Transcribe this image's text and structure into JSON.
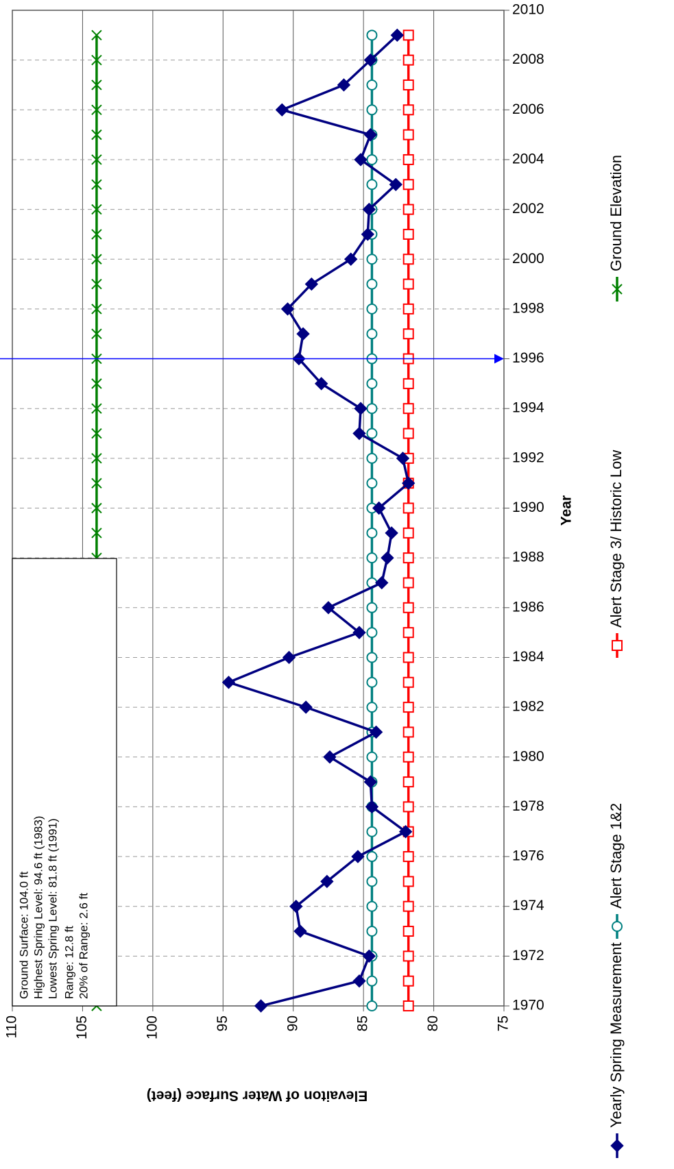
{
  "chart_data": {
    "type": "line",
    "x_label": "Year",
    "y_label": "Elevaiton of Water Surface (feet)",
    "x": [
      1970,
      1971,
      1972,
      1973,
      1974,
      1975,
      1976,
      1977,
      1978,
      1979,
      1980,
      1981,
      1982,
      1983,
      1984,
      1985,
      1986,
      1987,
      1988,
      1989,
      1990,
      1991,
      1992,
      1993,
      1994,
      1995,
      1996,
      1997,
      1998,
      1999,
      2000,
      2001,
      2002,
      2003,
      2004,
      2005,
      2006,
      2007,
      2008,
      2009
    ],
    "series": [
      {
        "name": "Yearly Spring Measurement",
        "color": "#000080",
        "marker": "diamond",
        "values": [
          92.3,
          85.3,
          84.6,
          89.5,
          89.8,
          87.6,
          85.4,
          82.0,
          84.4,
          84.5,
          87.4,
          84.1,
          89.1,
          94.6,
          90.3,
          85.3,
          87.5,
          83.7,
          83.3,
          83.0,
          83.9,
          81.8,
          82.2,
          85.3,
          85.2,
          88.0,
          89.6,
          89.3,
          90.4,
          88.7,
          85.9,
          84.7,
          84.6,
          82.7,
          85.2,
          84.5,
          90.8,
          86.4,
          84.5,
          82.6
        ]
      },
      {
        "name": "Alert Stage 1&2",
        "color": "#008080",
        "marker": "circle",
        "values": [
          84.4,
          84.4,
          84.4,
          84.4,
          84.4,
          84.4,
          84.4,
          84.4,
          84.4,
          84.4,
          84.4,
          84.4,
          84.4,
          84.4,
          84.4,
          84.4,
          84.4,
          84.4,
          84.4,
          84.4,
          84.4,
          84.4,
          84.4,
          84.4,
          84.4,
          84.4,
          84.4,
          84.4,
          84.4,
          84.4,
          84.4,
          84.4,
          84.4,
          84.4,
          84.4,
          84.4,
          84.4,
          84.4,
          84.4,
          84.4
        ]
      },
      {
        "name": "Alert Stage 3/ Historic Low",
        "color": "#ff0000",
        "marker": "square",
        "values": [
          81.8,
          81.8,
          81.8,
          81.8,
          81.8,
          81.8,
          81.8,
          81.8,
          81.8,
          81.8,
          81.8,
          81.8,
          81.8,
          81.8,
          81.8,
          81.8,
          81.8,
          81.8,
          81.8,
          81.8,
          81.8,
          81.8,
          81.8,
          81.8,
          81.8,
          81.8,
          81.8,
          81.8,
          81.8,
          81.8,
          81.8,
          81.8,
          81.8,
          81.8,
          81.8,
          81.8,
          81.8,
          81.8,
          81.8,
          81.8
        ]
      },
      {
        "name": "Ground Elevation",
        "color": "#008000",
        "marker": "x",
        "values": [
          104.0,
          104.0,
          104.0,
          104.0,
          104.0,
          104.0,
          104.0,
          104.0,
          104.0,
          104.0,
          104.0,
          104.0,
          104.0,
          104.0,
          104.0,
          104.0,
          104.0,
          104.0,
          104.0,
          104.0,
          104.0,
          104.0,
          104.0,
          104.0,
          104.0,
          104.0,
          104.0,
          104.0,
          104.0,
          104.0,
          104.0,
          104.0,
          104.0,
          104.0,
          104.0,
          104.0,
          104.0,
          104.0,
          104.0,
          104.0
        ]
      }
    ],
    "xlim": [
      1970,
      2010
    ],
    "xticks": [
      1970,
      1972,
      1974,
      1976,
      1978,
      1980,
      1982,
      1984,
      1986,
      1988,
      1990,
      1992,
      1994,
      1996,
      1998,
      2000,
      2002,
      2004,
      2006,
      2008,
      2010
    ],
    "ylim": [
      75,
      110
    ],
    "yticks": [
      75,
      80,
      85,
      90,
      95,
      100,
      105,
      110
    ],
    "grid": true,
    "vline": 1996,
    "annotation_lines": [
      "Ground Surface: 104.0 ft",
      "Highest Spring Level: 94.6 ft (1983)",
      "Lowest Spring Level: 81.8 ft (1991)",
      "Range: 12.8 ft",
      "20% of Range: 2.6 ft"
    ],
    "legend": "bottom"
  }
}
